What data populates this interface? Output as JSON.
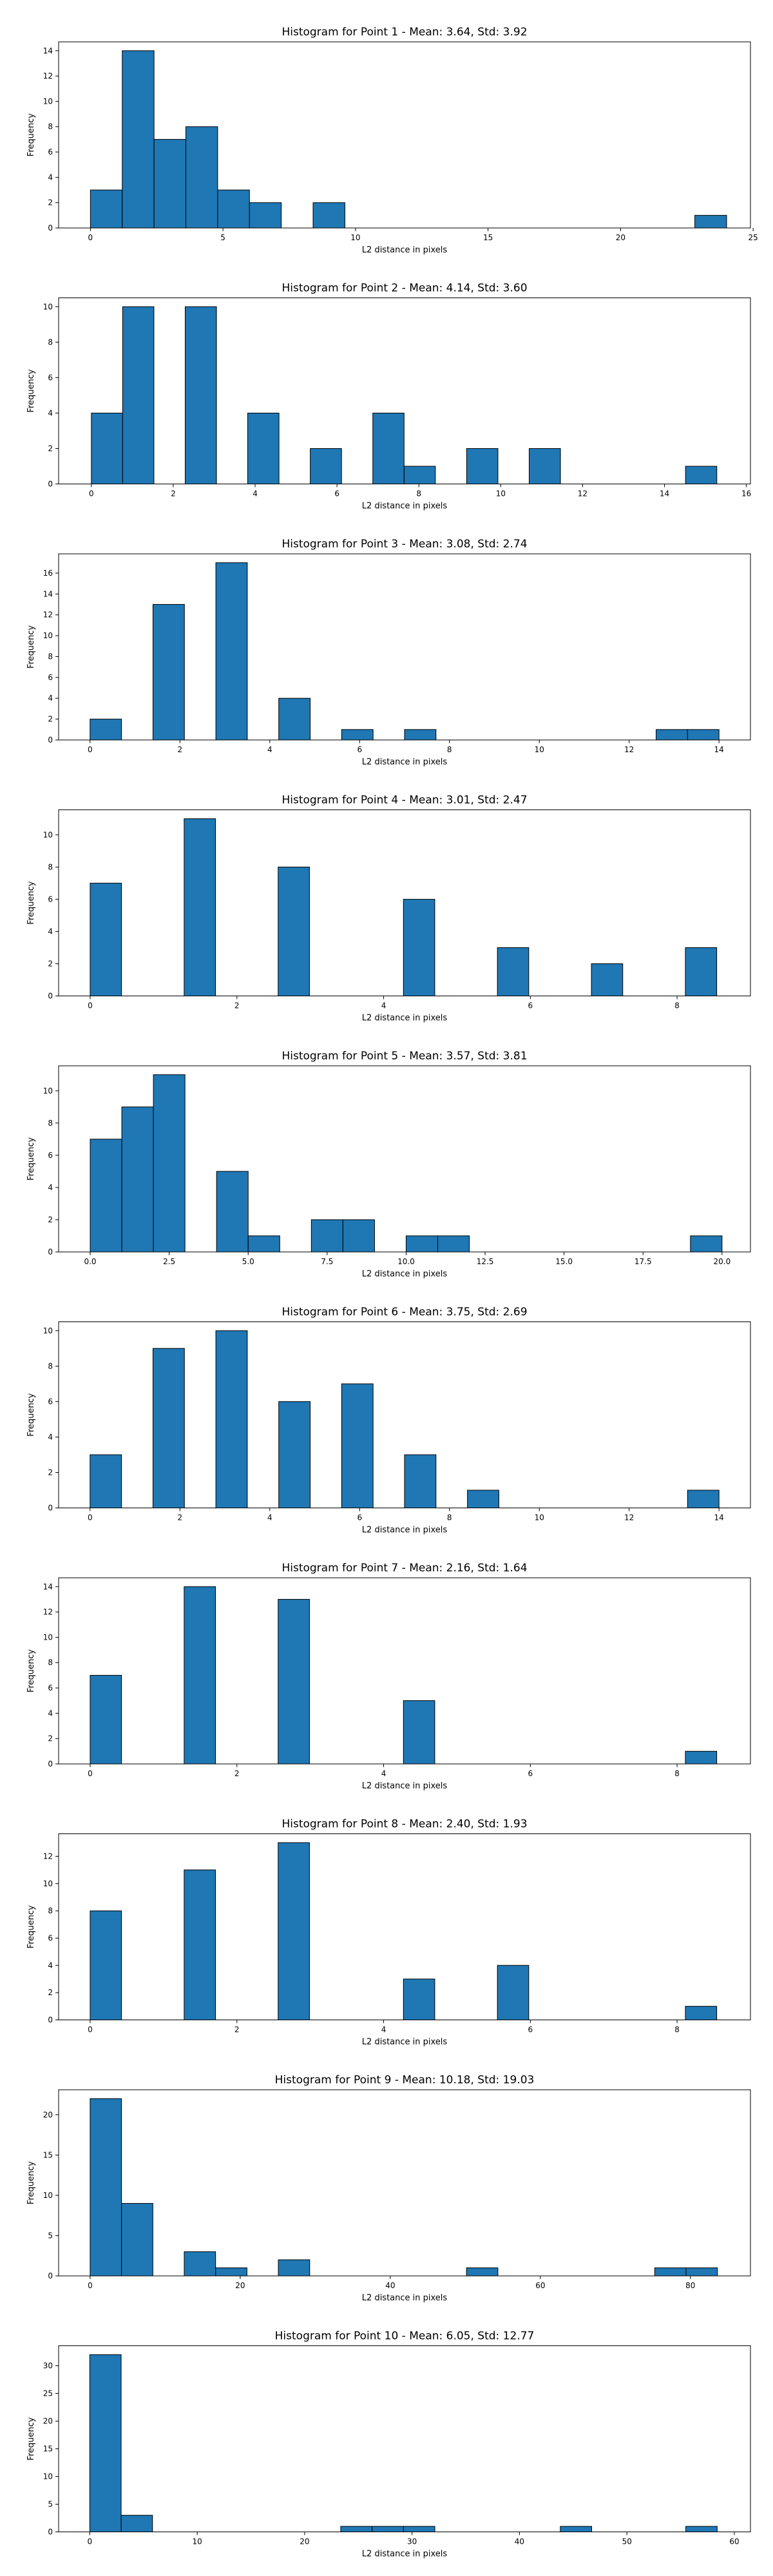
{
  "chart_data": [
    {
      "type": "bar",
      "title": "Histogram for Point 1 - Mean: 3.64, Std: 3.92",
      "xlabel": "L2 distance in pixels",
      "ylabel": "Frequency",
      "xlim": [
        -1.2,
        24.9
      ],
      "ylim": [
        0,
        14.7
      ],
      "xticks": [
        0,
        5,
        10,
        15,
        20,
        25
      ],
      "xtick_labels": [
        "0",
        "5",
        "10",
        "15",
        "20",
        "25"
      ],
      "yticks": [
        0,
        2,
        4,
        6,
        8,
        10,
        12,
        14
      ],
      "bin_width": 1.2,
      "bins": [
        {
          "x": 0.0,
          "count": 3
        },
        {
          "x": 1.2,
          "count": 14
        },
        {
          "x": 2.4,
          "count": 7
        },
        {
          "x": 3.6,
          "count": 8
        },
        {
          "x": 4.8,
          "count": 3
        },
        {
          "x": 6.0,
          "count": 2
        },
        {
          "x": 8.4,
          "count": 2
        },
        {
          "x": 22.8,
          "count": 1
        }
      ],
      "bar_color": "#1f77b4",
      "grid": false
    },
    {
      "type": "bar",
      "title": "Histogram for Point 2 - Mean: 4.14, Std: 3.60",
      "xlabel": "L2 distance in pixels",
      "ylabel": "Frequency",
      "xlim": [
        -0.8,
        16.1
      ],
      "ylim": [
        0,
        10.5
      ],
      "xticks": [
        0,
        2,
        4,
        6,
        8,
        10,
        12,
        14,
        16
      ],
      "xtick_labels": [
        "0",
        "2",
        "4",
        "6",
        "8",
        "10",
        "12",
        "14",
        "16"
      ],
      "yticks": [
        0,
        2,
        4,
        6,
        8,
        10
      ],
      "bin_width": 0.764,
      "bins": [
        {
          "x": 0.0,
          "count": 4
        },
        {
          "x": 0.764,
          "count": 10
        },
        {
          "x": 2.292,
          "count": 10
        },
        {
          "x": 3.819,
          "count": 4
        },
        {
          "x": 5.347,
          "count": 2
        },
        {
          "x": 6.875,
          "count": 4
        },
        {
          "x": 7.639,
          "count": 1
        },
        {
          "x": 9.167,
          "count": 2
        },
        {
          "x": 10.695,
          "count": 2
        },
        {
          "x": 14.514,
          "count": 1
        }
      ],
      "bar_color": "#1f77b4",
      "grid": false
    },
    {
      "type": "bar",
      "title": "Histogram for Point 3 - Mean: 3.08, Std: 2.74",
      "xlabel": "L2 distance in pixels",
      "ylabel": "Frequency",
      "xlim": [
        -0.7,
        14.7
      ],
      "ylim": [
        0,
        17.85
      ],
      "xticks": [
        0,
        2,
        4,
        6,
        8,
        10,
        12,
        14
      ],
      "xtick_labels": [
        "0",
        "2",
        "4",
        "6",
        "8",
        "10",
        "12",
        "14"
      ],
      "yticks": [
        0,
        2,
        4,
        6,
        8,
        10,
        12,
        14,
        16
      ],
      "bin_width": 0.7,
      "bins": [
        {
          "x": 0.0,
          "count": 2
        },
        {
          "x": 1.4,
          "count": 13
        },
        {
          "x": 2.8,
          "count": 17
        },
        {
          "x": 4.2,
          "count": 4
        },
        {
          "x": 5.6,
          "count": 1
        },
        {
          "x": 7.0,
          "count": 1
        },
        {
          "x": 12.6,
          "count": 1
        },
        {
          "x": 13.3,
          "count": 1
        }
      ],
      "bar_color": "#1f77b4",
      "grid": false
    },
    {
      "type": "bar",
      "title": "Histogram for Point 4 - Mean: 3.01, Std: 2.47",
      "xlabel": "L2 distance in pixels",
      "ylabel": "Frequency",
      "xlim": [
        -0.43,
        9.0
      ],
      "ylim": [
        0,
        11.55
      ],
      "xticks": [
        0,
        2,
        4,
        6,
        8
      ],
      "xtick_labels": [
        "0",
        "2",
        "4",
        "6",
        "8"
      ],
      "yticks": [
        0,
        2,
        4,
        6,
        8,
        10
      ],
      "bin_width": 0.427,
      "bins": [
        {
          "x": 0.0,
          "count": 7
        },
        {
          "x": 1.281,
          "count": 11
        },
        {
          "x": 2.562,
          "count": 8
        },
        {
          "x": 4.27,
          "count": 6
        },
        {
          "x": 5.551,
          "count": 3
        },
        {
          "x": 6.832,
          "count": 2
        },
        {
          "x": 8.113,
          "count": 3
        }
      ],
      "bar_color": "#1f77b4",
      "grid": false
    },
    {
      "type": "bar",
      "title": "Histogram for Point 5 - Mean: 3.57, Std: 3.81",
      "xlabel": "L2 distance in pixels",
      "ylabel": "Frequency",
      "xlim": [
        -1.0,
        20.9
      ],
      "ylim": [
        0,
        11.55
      ],
      "xticks": [
        0,
        2.5,
        5,
        7.5,
        10,
        12.5,
        15,
        17.5,
        20
      ],
      "xtick_labels": [
        "0.0",
        "2.5",
        "5.0",
        "7.5",
        "10.0",
        "12.5",
        "15.0",
        "17.5",
        "20.0"
      ],
      "yticks": [
        0,
        2,
        4,
        6,
        8,
        10
      ],
      "bin_width": 1.0,
      "bins": [
        {
          "x": 0.0,
          "count": 7
        },
        {
          "x": 1.0,
          "count": 9
        },
        {
          "x": 2.0,
          "count": 11
        },
        {
          "x": 4.0,
          "count": 5
        },
        {
          "x": 5.0,
          "count": 1
        },
        {
          "x": 7.0,
          "count": 2
        },
        {
          "x": 8.0,
          "count": 2
        },
        {
          "x": 10.0,
          "count": 1
        },
        {
          "x": 11.0,
          "count": 1
        },
        {
          "x": 19.0,
          "count": 1
        }
      ],
      "bar_color": "#1f77b4",
      "grid": false
    },
    {
      "type": "bar",
      "title": "Histogram for Point 6 - Mean: 3.75, Std: 2.69",
      "xlabel": "L2 distance in pixels",
      "ylabel": "Frequency",
      "xlim": [
        -0.7,
        14.7
      ],
      "ylim": [
        0,
        10.5
      ],
      "xticks": [
        0,
        2,
        4,
        6,
        8,
        10,
        12,
        14
      ],
      "xtick_labels": [
        "0",
        "2",
        "4",
        "6",
        "8",
        "10",
        "12",
        "14"
      ],
      "yticks": [
        0,
        2,
        4,
        6,
        8,
        10
      ],
      "bin_width": 0.7,
      "bins": [
        {
          "x": 0.0,
          "count": 3
        },
        {
          "x": 1.4,
          "count": 9
        },
        {
          "x": 2.8,
          "count": 10
        },
        {
          "x": 4.2,
          "count": 6
        },
        {
          "x": 5.6,
          "count": 7
        },
        {
          "x": 7.0,
          "count": 3
        },
        {
          "x": 8.4,
          "count": 1
        },
        {
          "x": 13.3,
          "count": 1
        }
      ],
      "bar_color": "#1f77b4",
      "grid": false
    },
    {
      "type": "bar",
      "title": "Histogram for Point 7 - Mean: 2.16, Std: 1.64",
      "xlabel": "L2 distance in pixels",
      "ylabel": "Frequency",
      "xlim": [
        -0.43,
        9.0
      ],
      "ylim": [
        0,
        14.7
      ],
      "xticks": [
        0,
        2,
        4,
        6,
        8
      ],
      "xtick_labels": [
        "0",
        "2",
        "4",
        "6",
        "8"
      ],
      "yticks": [
        0,
        2,
        4,
        6,
        8,
        10,
        12,
        14
      ],
      "bin_width": 0.427,
      "bins": [
        {
          "x": 0.0,
          "count": 7
        },
        {
          "x": 1.281,
          "count": 14
        },
        {
          "x": 2.562,
          "count": 13
        },
        {
          "x": 4.27,
          "count": 5
        },
        {
          "x": 8.113,
          "count": 1
        }
      ],
      "bar_color": "#1f77b4",
      "grid": false
    },
    {
      "type": "bar",
      "title": "Histogram for Point 8 - Mean: 2.40, Std: 1.93",
      "xlabel": "L2 distance in pixels",
      "ylabel": "Frequency",
      "xlim": [
        -0.43,
        9.0
      ],
      "ylim": [
        0,
        13.65
      ],
      "xticks": [
        0,
        2,
        4,
        6,
        8
      ],
      "xtick_labels": [
        "0",
        "2",
        "4",
        "6",
        "8"
      ],
      "yticks": [
        0,
        2,
        4,
        6,
        8,
        10,
        12
      ],
      "bin_width": 0.427,
      "bins": [
        {
          "x": 0.0,
          "count": 8
        },
        {
          "x": 1.281,
          "count": 11
        },
        {
          "x": 2.562,
          "count": 13
        },
        {
          "x": 4.27,
          "count": 3
        },
        {
          "x": 5.551,
          "count": 4
        },
        {
          "x": 8.113,
          "count": 1
        }
      ],
      "bar_color": "#1f77b4",
      "grid": false
    },
    {
      "type": "bar",
      "title": "Histogram for Point 9 - Mean: 10.18, Std: 19.03",
      "xlabel": "L2 distance in pixels",
      "ylabel": "Frequency",
      "xlim": [
        -4.2,
        88.0
      ],
      "ylim": [
        0,
        23.1
      ],
      "xticks": [
        0,
        20,
        40,
        60,
        80
      ],
      "xtick_labels": [
        "0",
        "20",
        "40",
        "60",
        "80"
      ],
      "yticks": [
        0,
        5,
        10,
        15,
        20
      ],
      "bin_width": 4.18,
      "bins": [
        {
          "x": 0.0,
          "count": 22
        },
        {
          "x": 4.18,
          "count": 9
        },
        {
          "x": 12.54,
          "count": 3
        },
        {
          "x": 16.72,
          "count": 1
        },
        {
          "x": 25.08,
          "count": 2
        },
        {
          "x": 50.16,
          "count": 1
        },
        {
          "x": 75.24,
          "count": 1
        },
        {
          "x": 79.42,
          "count": 1
        }
      ],
      "bar_color": "#1f77b4",
      "grid": false
    },
    {
      "type": "bar",
      "title": "Histogram for Point 10 - Mean: 6.05, Std: 12.77",
      "xlabel": "L2 distance in pixels",
      "ylabel": "Frequency",
      "xlim": [
        -2.9,
        61.5
      ],
      "ylim": [
        0,
        33.6
      ],
      "xticks": [
        0,
        10,
        20,
        30,
        40,
        50,
        60
      ],
      "xtick_labels": [
        "0",
        "10",
        "20",
        "30",
        "40",
        "50",
        "60"
      ],
      "yticks": [
        0,
        5,
        10,
        15,
        20,
        25,
        30
      ],
      "bin_width": 2.92,
      "bins": [
        {
          "x": 0.0,
          "count": 32
        },
        {
          "x": 2.92,
          "count": 3
        },
        {
          "x": 23.36,
          "count": 1
        },
        {
          "x": 26.28,
          "count": 1
        },
        {
          "x": 29.2,
          "count": 1
        },
        {
          "x": 43.8,
          "count": 1
        },
        {
          "x": 55.48,
          "count": 1
        }
      ],
      "bar_color": "#1f77b4",
      "grid": false
    }
  ]
}
